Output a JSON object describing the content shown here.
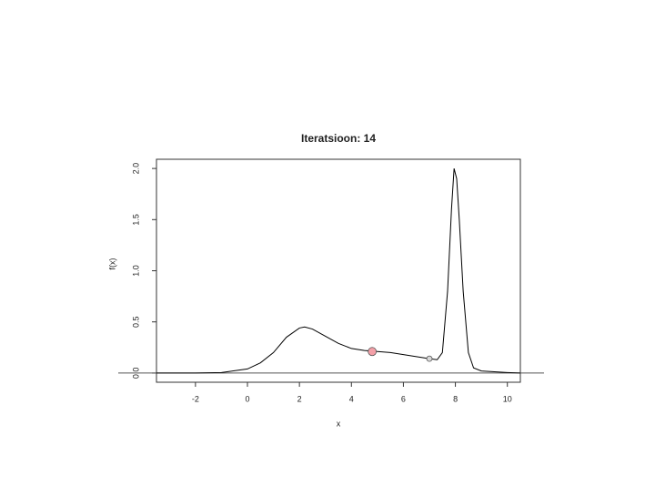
{
  "chart_data": {
    "type": "line",
    "title": "Iteratsioon: 14",
    "xlabel": "x",
    "ylabel": "f(x)",
    "x": [
      -3.5,
      -2,
      -1,
      0,
      0.5,
      1,
      1.5,
      2,
      2.2,
      2.5,
      3,
      3.5,
      4,
      4.5,
      5,
      5.5,
      6,
      6.5,
      7,
      7.3,
      7.5,
      7.7,
      7.85,
      7.95,
      8.05,
      8.15,
      8.3,
      8.5,
      8.7,
      9,
      10,
      10.5
    ],
    "series": [
      {
        "color": "#000000",
        "values": [
          0,
          0,
          0.005,
          0.04,
          0.1,
          0.2,
          0.35,
          0.44,
          0.45,
          0.43,
          0.36,
          0.29,
          0.24,
          0.22,
          0.21,
          0.2,
          0.18,
          0.16,
          0.14,
          0.13,
          0.2,
          0.8,
          1.6,
          2.0,
          1.9,
          1.5,
          0.8,
          0.2,
          0.05,
          0.02,
          0.005,
          0
        ]
      }
    ],
    "points": [
      {
        "x": 4.8,
        "y": 0.21,
        "color": "#f4a0a8"
      },
      {
        "x": 7.0,
        "y": 0.14,
        "color": "#d8d8d8"
      }
    ],
    "hline": 0,
    "xlim": [
      -3.5,
      10.5
    ],
    "ylim": [
      -0.09,
      2.09
    ],
    "xticks": [
      -2,
      0,
      2,
      4,
      6,
      8,
      10
    ],
    "yticks": [
      {
        "value": 0,
        "label": "0.0"
      },
      {
        "value": 0.5,
        "label": "0.5"
      },
      {
        "value": 1,
        "label": "1.0"
      },
      {
        "value": 1.5,
        "label": "1.5"
      },
      {
        "value": 2,
        "label": "2.0"
      }
    ]
  }
}
